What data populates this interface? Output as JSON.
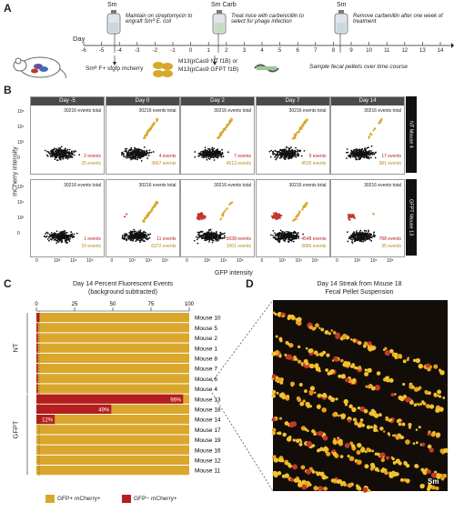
{
  "panels": {
    "a": "A",
    "b": "B",
    "c": "C",
    "d": "D"
  },
  "timeline": {
    "day_label": "Day",
    "days": [
      "-6",
      "-5",
      "-4",
      "-3",
      "-2",
      "-1",
      "0",
      "1",
      "2",
      "3",
      "4",
      "5",
      "6",
      "7",
      "8",
      "9",
      "10",
      "11",
      "12",
      "13",
      "14"
    ],
    "bottle1": {
      "label": "Sm",
      "desc": "Maintain on streptomycin to engraft Smᴿ E. coli"
    },
    "bottle2": {
      "label": "Sm Carb",
      "desc": "Treat mice with carbenicillin to select for phage infection"
    },
    "bottle3": {
      "label": "Sm",
      "desc": "Remove carbenillin after one week of treatment"
    },
    "strain": "Smᴿ F+ sfgfp mcherry",
    "phage1": "M13(pCas9 NT f1B) or",
    "phage2": "M13(pCas9 GFPT f1B)",
    "sample": "Sample fecal pellets over time course"
  },
  "flow": {
    "days": [
      "Day -5",
      "Day 0",
      "Day 2",
      "Day 7",
      "Day 14"
    ],
    "events_total": "30216 events total",
    "ylabel": "mCherry intensity",
    "xlabel": "GFP intensity",
    "yticks": [
      "10⁵",
      "10⁴",
      "10³",
      "0"
    ],
    "xticks": [
      "0",
      "10³",
      "10⁴",
      "10⁵"
    ],
    "rows": [
      {
        "tab": "NT Mouse 4",
        "red": [
          "2 events",
          "4 events",
          "7 events",
          "9 events",
          "17 events"
        ],
        "gold": [
          "25 events",
          "3667 events",
          "4513 events",
          "4535 events",
          "381 events"
        ]
      },
      {
        "tab": "GFPT Mouse 13",
        "red": [
          "1 events",
          "11 events",
          "5038 events",
          "4548 events",
          "788 events"
        ],
        "gold": [
          "10 events",
          "6372 events",
          "1001 events",
          "3686 events",
          "35 events"
        ]
      }
    ]
  },
  "bars": {
    "title1": "Day 14 Percent Fluorescent Events",
    "title2": "(background subtracted)",
    "ticks": [
      "0",
      "25",
      "50",
      "75",
      "100"
    ],
    "group_nt": "NT",
    "group_gfpt": "GFPT",
    "mice": [
      "Mouse 10",
      "Mouse 5",
      "Mouse 2",
      "Mouse 1",
      "Mouse 8",
      "Mouse 7",
      "Mouse 6",
      "Mouse 4",
      "Mouse 13",
      "Mouse 18",
      "Mouse 14",
      "Mouse 17",
      "Mouse 19",
      "Mouse 16",
      "Mouse 12",
      "Mouse 11"
    ],
    "labels": [
      "",
      "",
      "",
      "",
      "",
      "",
      "",
      "",
      "96%",
      "49%",
      "12%",
      "",
      "",
      "",
      "",
      ""
    ],
    "legend_gold": "GFP+ mCherry+",
    "legend_red": "GFP− mCherry+",
    "colors": {
      "gold": "#d9a72c",
      "red": "#b41e1e"
    }
  },
  "chart_data": {
    "type": "bar",
    "title": "Day 14 Percent Fluorescent Events",
    "subtitle": "(background subtracted)",
    "categories": [
      "Mouse 10",
      "Mouse 5",
      "Mouse 2",
      "Mouse 1",
      "Mouse 8",
      "Mouse 7",
      "Mouse 6",
      "Mouse 4",
      "Mouse 13",
      "Mouse 18",
      "Mouse 14",
      "Mouse 17",
      "Mouse 19",
      "Mouse 16",
      "Mouse 12",
      "Mouse 11"
    ],
    "series": [
      {
        "name": "GFP− mCherry+",
        "values": [
          2,
          1,
          1,
          1,
          1,
          1,
          1,
          1,
          96,
          49,
          12,
          0,
          0,
          0,
          0,
          0
        ]
      },
      {
        "name": "GFP+ mCherry+",
        "values": [
          98,
          99,
          99,
          99,
          99,
          99,
          99,
          99,
          4,
          51,
          88,
          100,
          100,
          100,
          100,
          100
        ]
      }
    ],
    "xlim": [
      0,
      100
    ],
    "stacked": true,
    "groups": {
      "NT": [
        "Mouse 10",
        "Mouse 5",
        "Mouse 2",
        "Mouse 1",
        "Mouse 8",
        "Mouse 7",
        "Mouse 6",
        "Mouse 4"
      ],
      "GFPT": [
        "Mouse 13",
        "Mouse 18",
        "Mouse 14",
        "Mouse 17",
        "Mouse 19",
        "Mouse 16",
        "Mouse 12",
        "Mouse 11"
      ]
    }
  },
  "micro": {
    "title1": "Day 14 Streak from Mouse 18",
    "title2": "Fecal Pellet Suspension",
    "tag": "Sm"
  }
}
